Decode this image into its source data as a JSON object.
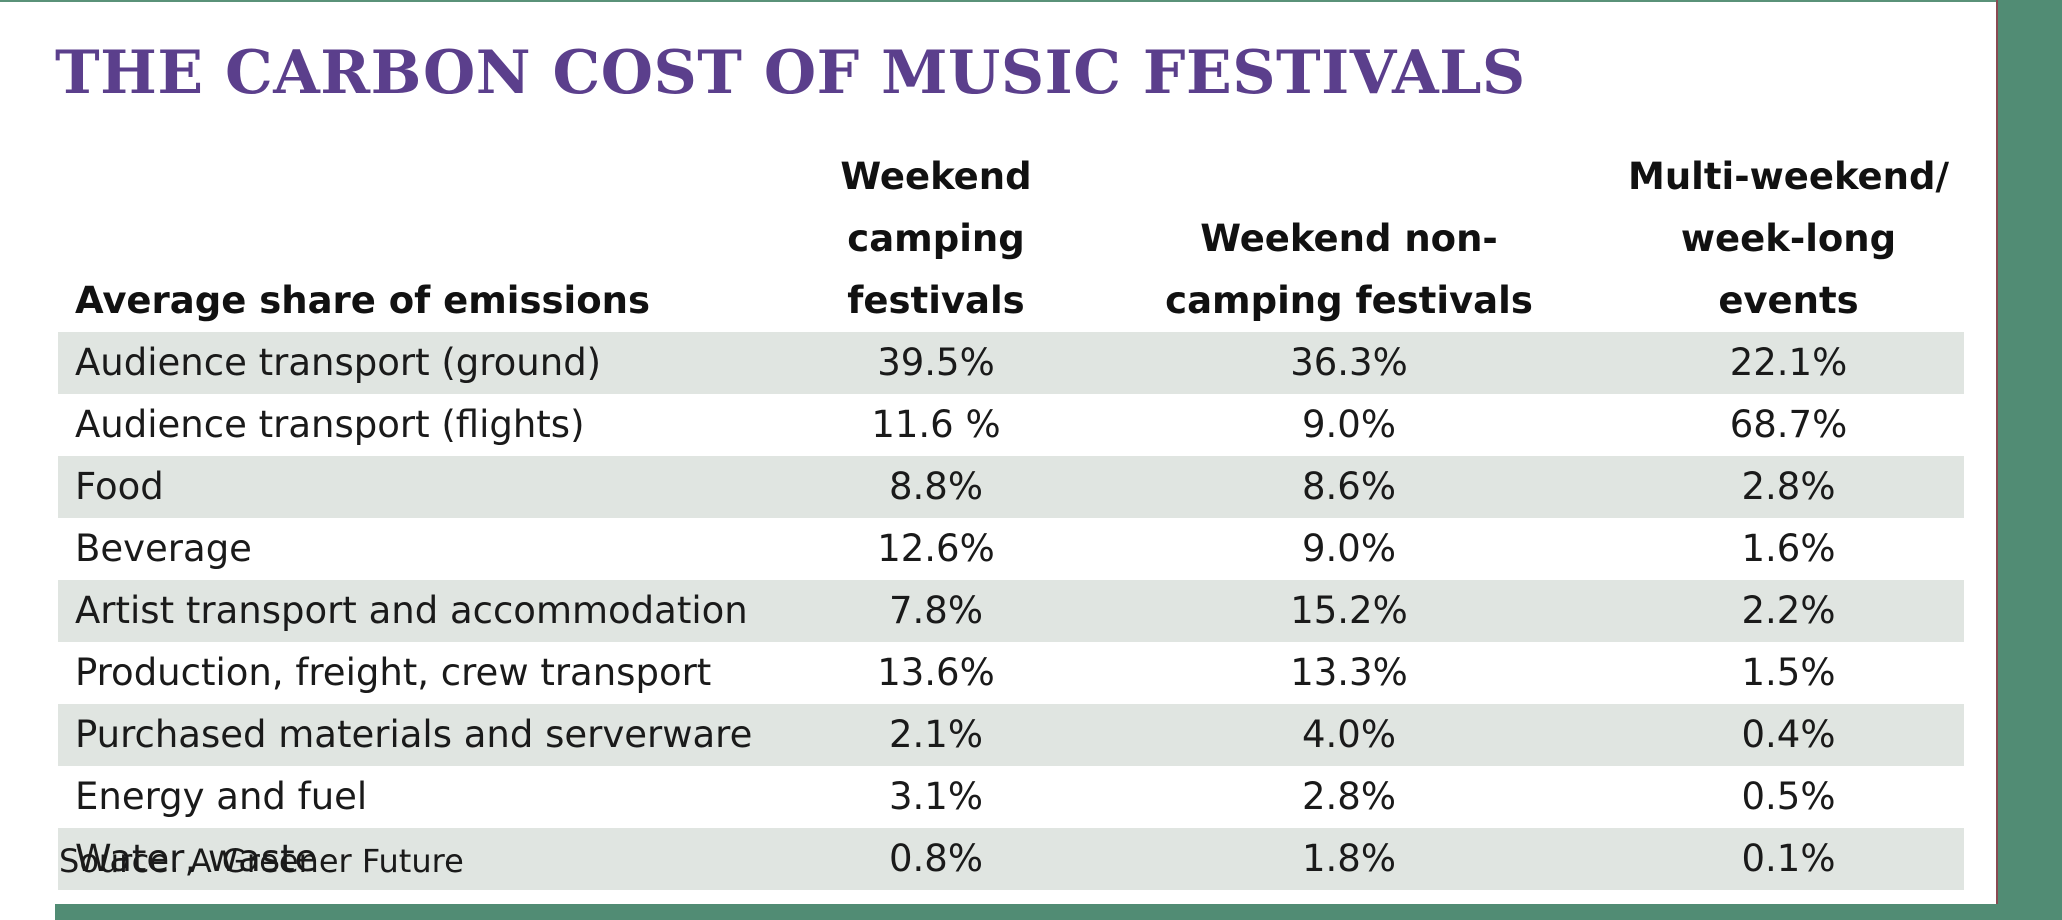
{
  "title": "THE CARBON COST OF MUSIC FESTIVALS",
  "source": "Source: A Greener Future",
  "colors": {
    "title": "#5b3f8c",
    "accent_green": "#518c74",
    "row_shade": "#e0e5e1"
  },
  "chart_data": {
    "type": "table",
    "title": "THE CARBON COST OF MUSIC FESTIVALS",
    "header": {
      "label": "Average share of emissions",
      "columns": [
        [
          "Weekend camping",
          "festivals"
        ],
        [
          "Weekend non-",
          "camping festivals"
        ],
        [
          "Multi-weekend/",
          "week-long events"
        ]
      ]
    },
    "rows": [
      {
        "label": "Audience transport (ground)",
        "values": [
          "39.5%",
          "36.3%",
          "22.1%"
        ]
      },
      {
        "label": "Audience transport (flights)",
        "values": [
          "11.6 %",
          "9.0%",
          "68.7%"
        ]
      },
      {
        "label": "Food",
        "values": [
          "8.8%",
          "8.6%",
          "2.8%"
        ]
      },
      {
        "label": "Beverage",
        "values": [
          "12.6%",
          "9.0%",
          "1.6%"
        ]
      },
      {
        "label": "Artist transport and accommodation",
        "values": [
          "7.8%",
          "15.2%",
          "2.2%"
        ]
      },
      {
        "label": "Production, freight, crew transport",
        "values": [
          "13.6%",
          "13.3%",
          "1.5%"
        ]
      },
      {
        "label": "Purchased materials and serverware",
        "values": [
          "2.1%",
          "4.0%",
          "0.4%"
        ]
      },
      {
        "label": "Energy and fuel",
        "values": [
          "3.1%",
          "2.8%",
          "0.5%"
        ]
      },
      {
        "label": "Water, waste",
        "values": [
          "0.8%",
          "1.8%",
          "0.1%"
        ]
      }
    ],
    "source": "Source: A Greener Future"
  }
}
